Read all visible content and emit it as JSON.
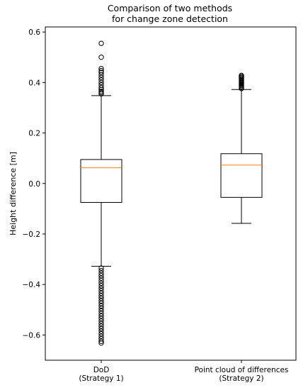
{
  "chart_data": {
    "type": "box",
    "title": "Comparison of two methods\nfor change zone detection",
    "xlabel": "",
    "ylabel": "Height difference [m]",
    "ylim": [
      -0.7,
      0.62
    ],
    "yticks": [
      -0.6,
      -0.4,
      -0.2,
      0.0,
      0.2,
      0.4,
      0.6
    ],
    "ytick_labels": [
      "−0.6",
      "−0.4",
      "−0.2",
      "0.0",
      "0.2",
      "0.4",
      "0.6"
    ],
    "grid": false,
    "categories": [
      "DoD\n(Strategy 1)",
      "Point cloud of differences\n(Strategy 2)"
    ],
    "boxes": [
      {
        "whisker_low": -0.328,
        "q1": -0.075,
        "median": 0.062,
        "q3": 0.095,
        "whisker_high": 0.348,
        "fliers_high": [
          0.355,
          0.36,
          0.365,
          0.372,
          0.38,
          0.39,
          0.4,
          0.41,
          0.42,
          0.43,
          0.44,
          0.447,
          0.455,
          0.5,
          0.555
        ],
        "fliers_low": [
          -0.335,
          -0.345,
          -0.355,
          -0.365,
          -0.375,
          -0.385,
          -0.395,
          -0.405,
          -0.415,
          -0.425,
          -0.435,
          -0.445,
          -0.455,
          -0.465,
          -0.475,
          -0.485,
          -0.495,
          -0.505,
          -0.515,
          -0.525,
          -0.535,
          -0.545,
          -0.555,
          -0.565,
          -0.575,
          -0.585,
          -0.595,
          -0.605,
          -0.615,
          -0.625,
          -0.632
        ]
      },
      {
        "whisker_low": -0.158,
        "q1": -0.055,
        "median": 0.073,
        "q3": 0.118,
        "whisker_high": 0.372,
        "fliers_high": [
          0.376,
          0.38,
          0.384,
          0.388,
          0.392,
          0.396,
          0.4,
          0.404,
          0.408,
          0.412,
          0.416,
          0.42,
          0.424,
          0.428
        ],
        "fliers_low": []
      }
    ],
    "colors": {
      "median": "#ff7f0e",
      "box": "#000000"
    }
  }
}
